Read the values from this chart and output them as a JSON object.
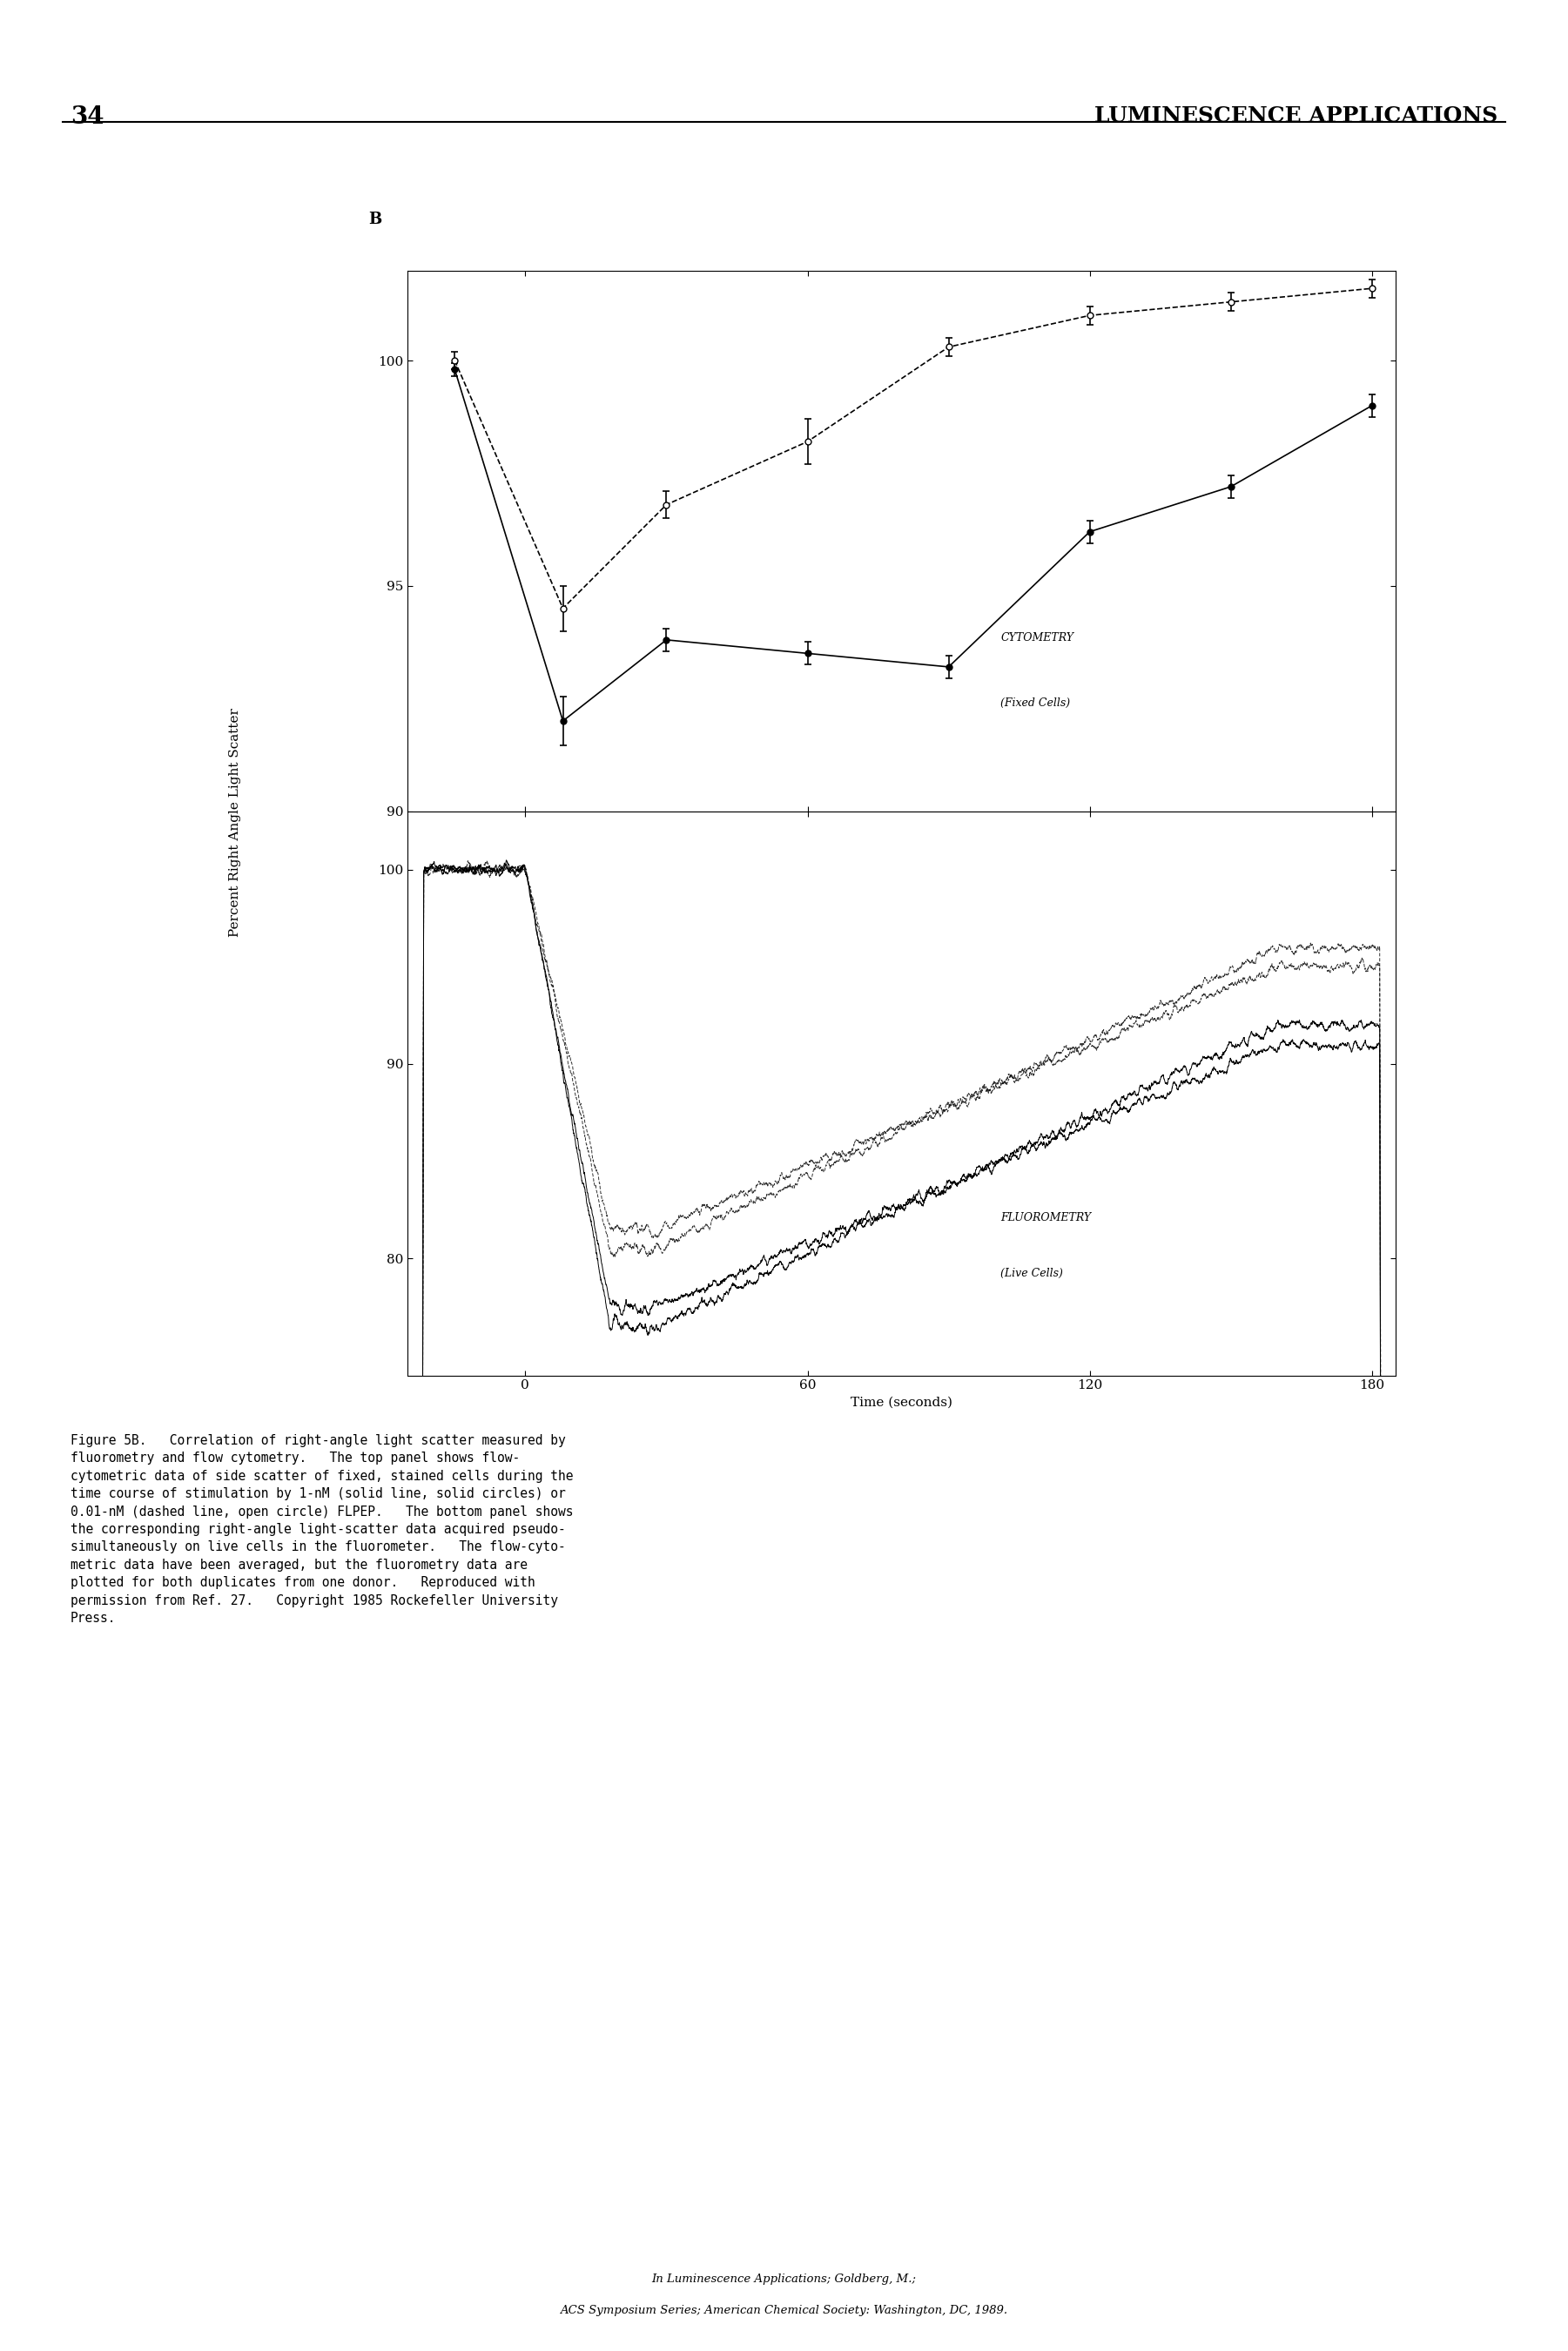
{
  "page_number": "34",
  "header_right": "LUMINESCENCE APPLICATIONS",
  "panel_label": "B",
  "ylabel_shared": "Percent Right Angle Light Scatter",
  "top_panel": {
    "ylim": [
      90,
      102
    ],
    "yticks": [
      90,
      95,
      100
    ],
    "xlim": [
      -25,
      185
    ],
    "xticks": [
      0,
      60,
      120,
      180
    ],
    "label_line1": "CYTOMETRY",
    "label_line2": "(Fixed Cells)",
    "solid_x": [
      -15,
      8,
      30,
      60,
      90,
      120,
      150,
      180
    ],
    "solid_y": [
      99.8,
      92.0,
      93.8,
      93.5,
      93.2,
      96.2,
      97.2,
      99.0
    ],
    "solid_yerr": [
      0.15,
      0.55,
      0.25,
      0.25,
      0.25,
      0.25,
      0.25,
      0.25
    ],
    "dashed_x": [
      -15,
      8,
      30,
      60,
      90,
      120,
      150,
      180
    ],
    "dashed_y": [
      100.0,
      94.5,
      96.8,
      98.2,
      100.3,
      101.0,
      101.3,
      101.6
    ],
    "dashed_yerr": [
      0.2,
      0.5,
      0.3,
      0.5,
      0.2,
      0.2,
      0.2,
      0.2
    ]
  },
  "bottom_panel": {
    "ylim": [
      74,
      103
    ],
    "yticks": [
      80,
      90,
      100
    ],
    "xlim": [
      -25,
      185
    ],
    "xticks": [
      0,
      60,
      120,
      180
    ],
    "xticklabels": [
      "0",
      "60",
      "120",
      "180"
    ],
    "xlabel": "Time (seconds)",
    "label_line1": "FLUOROMETRY",
    "label_line2": "(Live Cells)"
  },
  "caption_text": "Figure 5B.   Correlation of right-angle light scatter measured by\nfluorometry and flow cytometry.   The top panel shows flow-\ncytometric data of side scatter of fixed, stained cells during the\ntime course of stimulation by 1-nM (solid line, solid circles) or\n0.01-nM (dashed line, open circle) FLPEP.   The bottom panel shows\nthe corresponding right-angle light-scatter data acquired pseudo-\nsimultaneously on live cells in the fluorometer.   The flow-cyto-\nmetric data have been averaged, but the fluorometry data are\nplotted for both duplicates from one donor.   Reproduced with\npermission from Ref. 27.   Copyright 1985 Rockefeller University\nPress.",
  "footer_line1": "In Luminescence Applications; Goldberg, M.;",
  "footer_line2": "ACS Symposium Series; American Chemical Society: Washington, DC, 1989.",
  "background_color": "#ffffff",
  "line_color": "#000000"
}
